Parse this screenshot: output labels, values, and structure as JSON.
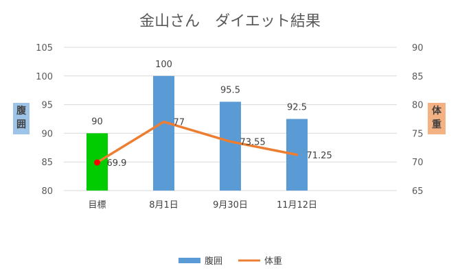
{
  "chart_data": {
    "type": "bar",
    "title": "金山さん　ダイエット結果",
    "categories": [
      "目標",
      "8月1日",
      "9月30日",
      "11月12日"
    ],
    "series": [
      {
        "name": "腹囲",
        "type": "bar",
        "axis": "left",
        "values": [
          90,
          100,
          95.5,
          92.5
        ],
        "color": "#5b9bd5",
        "point_colors": [
          "#00cc00",
          "#5b9bd5",
          "#5b9bd5",
          "#5b9bd5"
        ]
      },
      {
        "name": "体重",
        "type": "line",
        "axis": "right",
        "values": [
          69.9,
          77,
          73.55,
          71.25
        ],
        "color": "#ed7d31",
        "point_colors": [
          "#ff0000",
          null,
          null,
          null
        ]
      }
    ],
    "y_left": {
      "label": "腹囲",
      "range": [
        80,
        105
      ],
      "ticks": [
        80,
        85,
        90,
        95,
        100,
        105
      ],
      "label_bg": "#9dc3e6"
    },
    "y_right": {
      "label": "体重",
      "range": [
        65,
        90
      ],
      "ticks": [
        65,
        70,
        75,
        80,
        85,
        90
      ],
      "label_bg": "#f4b183"
    },
    "grid": true,
    "legend": {
      "position": "bottom",
      "items": [
        {
          "name": "腹囲",
          "symbol": "bar",
          "color": "#5b9bd5"
        },
        {
          "name": "体重",
          "symbol": "line",
          "color": "#ed7d31"
        }
      ]
    }
  }
}
